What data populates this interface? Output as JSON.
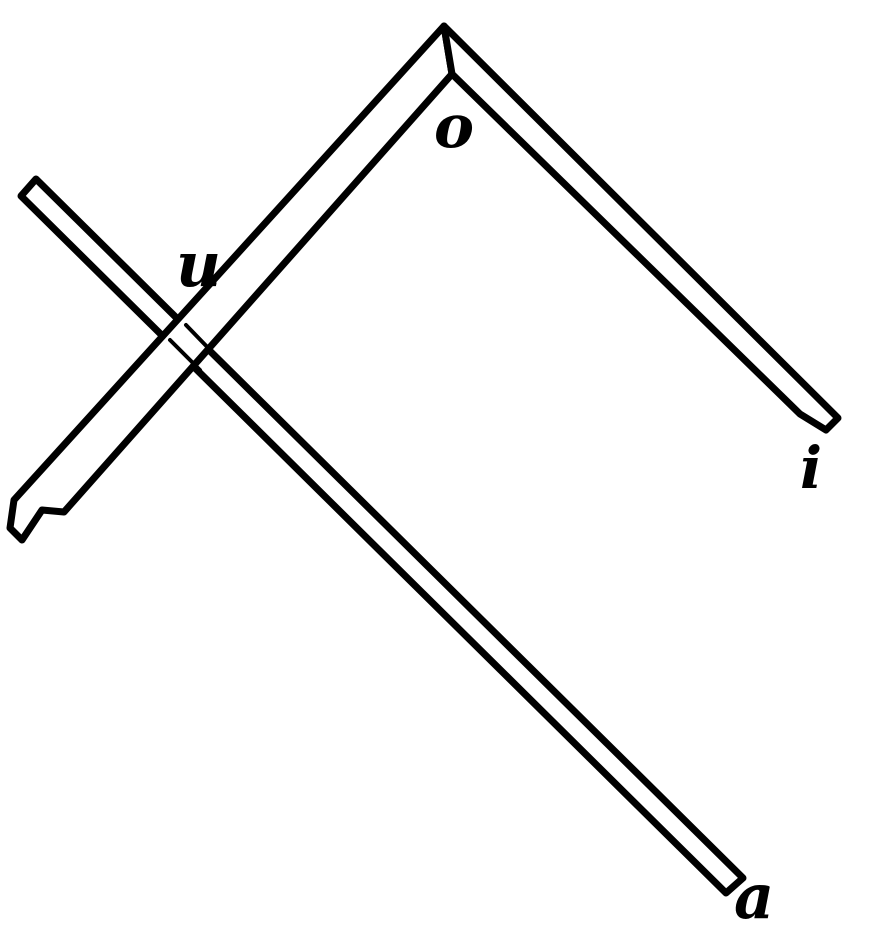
{
  "labels": {
    "o": "o",
    "u": "u",
    "i": "i",
    "a": "a"
  },
  "colors": {
    "ink": "#000000",
    "paper": "#ffffff"
  }
}
